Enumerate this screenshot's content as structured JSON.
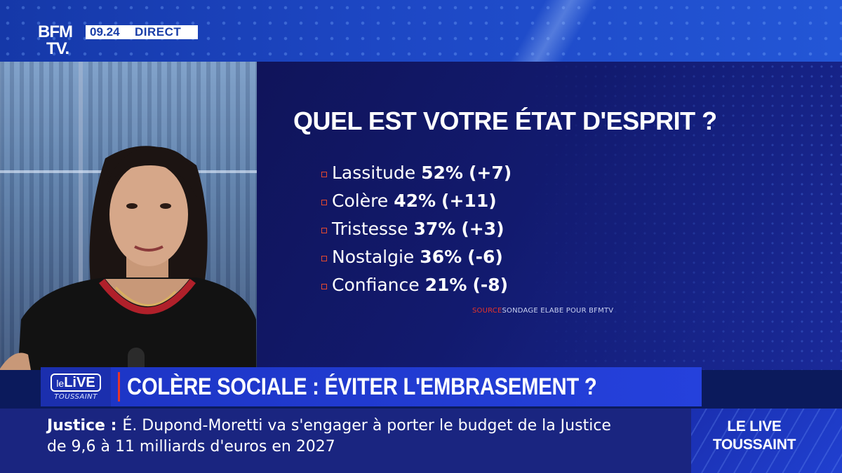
{
  "channel": {
    "logo_line1": "BFM",
    "logo_line2": "TV.",
    "time": "09.24",
    "status": "DIRECT"
  },
  "poll": {
    "question": "QUEL EST VOTRE ÉTAT D'ESPRIT ?",
    "items": [
      {
        "label": "Lassitude",
        "value": "52%",
        "delta": "(+7)"
      },
      {
        "label": "Colère",
        "value": "42%",
        "delta": "(+11)"
      },
      {
        "label": "Tristesse",
        "value": "37%",
        "delta": "(+3)"
      },
      {
        "label": "Nostalgie",
        "value": "36%",
        "delta": "(-6)"
      },
      {
        "label": "Confiance",
        "value": "21%",
        "delta": "(-8)"
      }
    ],
    "source_key": "SOURCE",
    "source_text": "SONDAGE ELABE POUR BFMTV",
    "bullet_color": "#e64a2e"
  },
  "show_badge": {
    "prefix": "le",
    "name": "LiVE",
    "subtitle": "TOUSSAINT"
  },
  "headline": "COLÈRE SOCIALE : ÉVITER L'EMBRASEMENT ?",
  "ticker": {
    "category": "Justice :",
    "line1": "É. Dupond-Moretti va s'engager à porter le budget de la Justice",
    "line2": "de 9,6 à 11 milliards d'euros en 2027"
  },
  "program": {
    "line1": "LE LIVE",
    "line2": "TOUSSAINT"
  },
  "colors": {
    "accent_red": "#e6352a",
    "brand_blue": "#1c34c4",
    "panel_navy": "#10145a"
  }
}
